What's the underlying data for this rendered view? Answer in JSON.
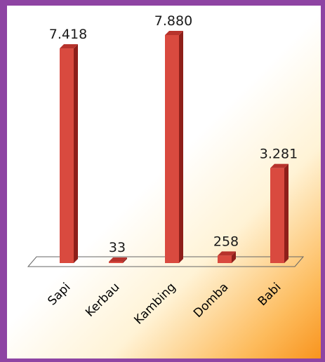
{
  "chart_data": {
    "type": "bar",
    "title": "",
    "xlabel": "",
    "ylabel": "",
    "categories": [
      "Sapi",
      "Kerbau",
      "Kambing",
      "Domba",
      "Babi"
    ],
    "values": [
      7418,
      33,
      7880,
      258,
      3281
    ],
    "value_labels": [
      "7.418",
      "33",
      "7.880",
      "258",
      "3.281"
    ],
    "ylim": [
      0,
      7880
    ],
    "grid": false,
    "legend": "none",
    "style": "3d-column",
    "colors": {
      "bar_front": "#d94a3f",
      "bar_side": "#8e1f1a",
      "bar_top": "#b7332c",
      "background": "#8e44a3"
    }
  }
}
